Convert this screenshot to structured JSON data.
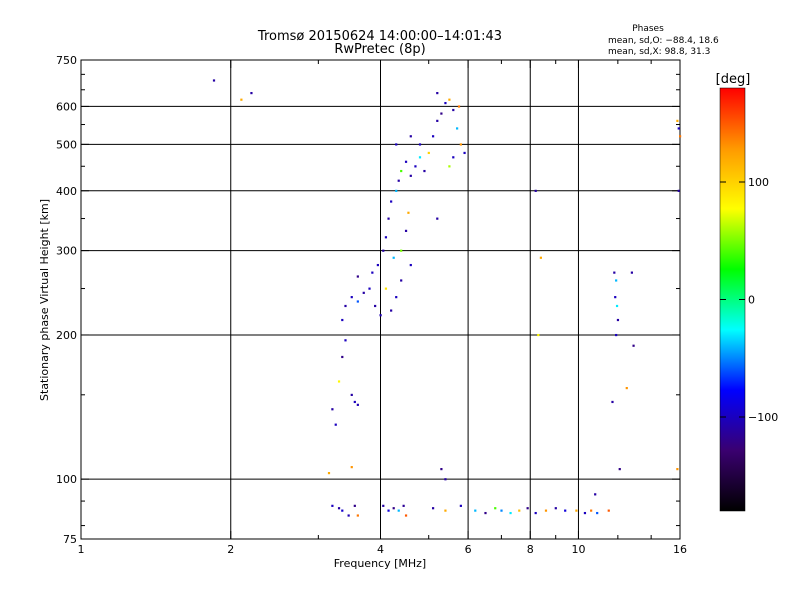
{
  "header": {
    "title_line1": "Tromsø 20150624 14:00:00–14:01:43",
    "title_line2": "RwPretec (8p)"
  },
  "stats": {
    "heading": "Phases",
    "line_o": "mean, sd,O: −88.4, 18.6",
    "line_x": "mean, sd,X: 98.8, 31.3"
  },
  "chart_data": {
    "type": "scatter",
    "xlabel": "Frequency [MHz]",
    "ylabel": "Stationary phase Virtual Height [km]",
    "x_scale": "log",
    "y_scale": "log",
    "xlim": [
      1,
      16
    ],
    "ylim": [
      75,
      750
    ],
    "xticks": [
      1,
      2,
      4,
      6,
      8,
      10,
      16
    ],
    "xtick_labels": [
      "1",
      "2",
      "4",
      "6",
      "8",
      "10",
      "16"
    ],
    "yticks": [
      75,
      100,
      200,
      300,
      400,
      500,
      600,
      750
    ],
    "ytick_labels": [
      "75",
      "100",
      "200",
      "300",
      "400",
      "500",
      "600",
      "750"
    ],
    "x_gridlines": [
      2,
      4,
      6,
      8,
      10
    ],
    "y_gridlines": [
      100,
      200,
      300,
      400,
      500,
      600
    ],
    "grid": true,
    "colorbar": {
      "label": "[deg]",
      "range": [
        -180,
        180
      ],
      "ticks": [
        100,
        0,
        -100
      ],
      "tick_labels": [
        "100",
        "0",
        "−100"
      ],
      "colormap": [
        "#000000",
        "#3a0070",
        "#0000ff",
        "#00ffff",
        "#00ff00",
        "#ffff00",
        "#ff9900",
        "#ff0000"
      ]
    },
    "series": [
      {
        "points": [
          [
            1.85,
            680,
            -110
          ],
          [
            2.1,
            620,
            120
          ],
          [
            2.2,
            640,
            -110
          ],
          [
            3.2,
            88,
            -100
          ],
          [
            3.3,
            87,
            -110
          ],
          [
            3.35,
            86,
            -95
          ],
          [
            3.45,
            84,
            -105
          ],
          [
            3.55,
            88,
            -120
          ],
          [
            3.6,
            84,
            140
          ],
          [
            4.05,
            88,
            -110
          ],
          [
            4.15,
            86,
            -90
          ],
          [
            4.25,
            87,
            -120
          ],
          [
            4.35,
            86,
            -40
          ],
          [
            4.45,
            88,
            -115
          ],
          [
            4.5,
            84,
            150
          ],
          [
            5.1,
            87,
            -110
          ],
          [
            5.4,
            86,
            120
          ],
          [
            5.8,
            88,
            -100
          ],
          [
            6.2,
            86,
            -40
          ],
          [
            6.5,
            85,
            -120
          ],
          [
            6.8,
            87,
            40
          ],
          [
            7.0,
            86,
            -50
          ],
          [
            7.3,
            85,
            -30
          ],
          [
            7.6,
            86,
            110
          ],
          [
            7.9,
            87,
            -120
          ],
          [
            8.2,
            85,
            -100
          ],
          [
            8.6,
            86,
            130
          ],
          [
            9.0,
            87,
            -110
          ],
          [
            9.4,
            86,
            -90
          ],
          [
            9.9,
            86,
            120
          ],
          [
            10.3,
            85,
            -100
          ],
          [
            10.6,
            86,
            140
          ],
          [
            10.9,
            85,
            -60
          ],
          [
            11.5,
            86,
            150
          ],
          [
            10.8,
            93,
            -110
          ],
          [
            3.2,
            140,
            -110
          ],
          [
            3.25,
            130,
            -100
          ],
          [
            3.3,
            160,
            80
          ],
          [
            3.35,
            180,
            -120
          ],
          [
            3.4,
            195,
            -100
          ],
          [
            3.5,
            150,
            -110
          ],
          [
            3.55,
            145,
            -100
          ],
          [
            3.6,
            143,
            -105
          ],
          [
            3.15,
            103,
            120
          ],
          [
            3.5,
            106,
            130
          ],
          [
            3.35,
            215,
            -100
          ],
          [
            3.4,
            230,
            -110
          ],
          [
            3.5,
            240,
            -100
          ],
          [
            3.6,
            235,
            -60
          ],
          [
            3.7,
            245,
            -110
          ],
          [
            3.8,
            250,
            -100
          ],
          [
            3.9,
            230,
            -110
          ],
          [
            4.0,
            220,
            -105
          ],
          [
            3.85,
            270,
            -100
          ],
          [
            3.6,
            265,
            -120
          ],
          [
            3.95,
            280,
            -100
          ],
          [
            4.05,
            300,
            -110
          ],
          [
            4.1,
            320,
            -100
          ],
          [
            4.15,
            350,
            -110
          ],
          [
            4.2,
            380,
            -100
          ],
          [
            4.3,
            400,
            -40
          ],
          [
            4.35,
            420,
            -110
          ],
          [
            4.4,
            440,
            40
          ],
          [
            4.5,
            460,
            -100
          ],
          [
            4.6,
            430,
            -110
          ],
          [
            4.7,
            450,
            -100
          ],
          [
            4.8,
            470,
            -30
          ],
          [
            4.9,
            440,
            -110
          ],
          [
            5.0,
            480,
            100
          ],
          [
            5.1,
            520,
            -100
          ],
          [
            5.2,
            560,
            -110
          ],
          [
            5.3,
            580,
            -120
          ],
          [
            5.4,
            610,
            -100
          ],
          [
            5.5,
            620,
            120
          ],
          [
            5.6,
            590,
            -110
          ],
          [
            5.7,
            540,
            -40
          ],
          [
            5.8,
            500,
            130
          ],
          [
            5.6,
            470,
            -100
          ],
          [
            5.5,
            450,
            60
          ],
          [
            5.9,
            480,
            -100
          ],
          [
            5.75,
            600,
            140
          ],
          [
            5.2,
            640,
            -110
          ],
          [
            4.8,
            500,
            -100
          ],
          [
            4.6,
            520,
            -110
          ],
          [
            4.3,
            500,
            -100
          ],
          [
            4.4,
            300,
            50
          ],
          [
            4.5,
            330,
            -110
          ],
          [
            4.55,
            360,
            120
          ],
          [
            4.6,
            280,
            -100
          ],
          [
            4.4,
            260,
            -110
          ],
          [
            4.3,
            240,
            -100
          ],
          [
            4.2,
            225,
            -110
          ],
          [
            4.25,
            290,
            -40
          ],
          [
            4.1,
            250,
            90
          ],
          [
            5.2,
            350,
            -110
          ],
          [
            5.3,
            105,
            -120
          ],
          [
            5.4,
            100,
            -110
          ],
          [
            8.2,
            400,
            -110
          ],
          [
            8.4,
            290,
            120
          ],
          [
            8.3,
            200,
            80
          ],
          [
            11.8,
            270,
            -110
          ],
          [
            11.9,
            260,
            -40
          ],
          [
            11.85,
            240,
            -100
          ],
          [
            11.95,
            230,
            -30
          ],
          [
            12.0,
            215,
            -110
          ],
          [
            11.9,
            200,
            -100
          ],
          [
            12.1,
            105,
            -120
          ],
          [
            12.8,
            270,
            -110
          ],
          [
            12.9,
            190,
            -120
          ],
          [
            12.5,
            155,
            130
          ],
          [
            11.7,
            145,
            -110
          ],
          [
            15.8,
            560,
            120
          ],
          [
            15.9,
            540,
            -100
          ],
          [
            16.0,
            520,
            140
          ],
          [
            15.9,
            400,
            -110
          ],
          [
            15.8,
            105,
            130
          ]
        ]
      }
    ]
  }
}
